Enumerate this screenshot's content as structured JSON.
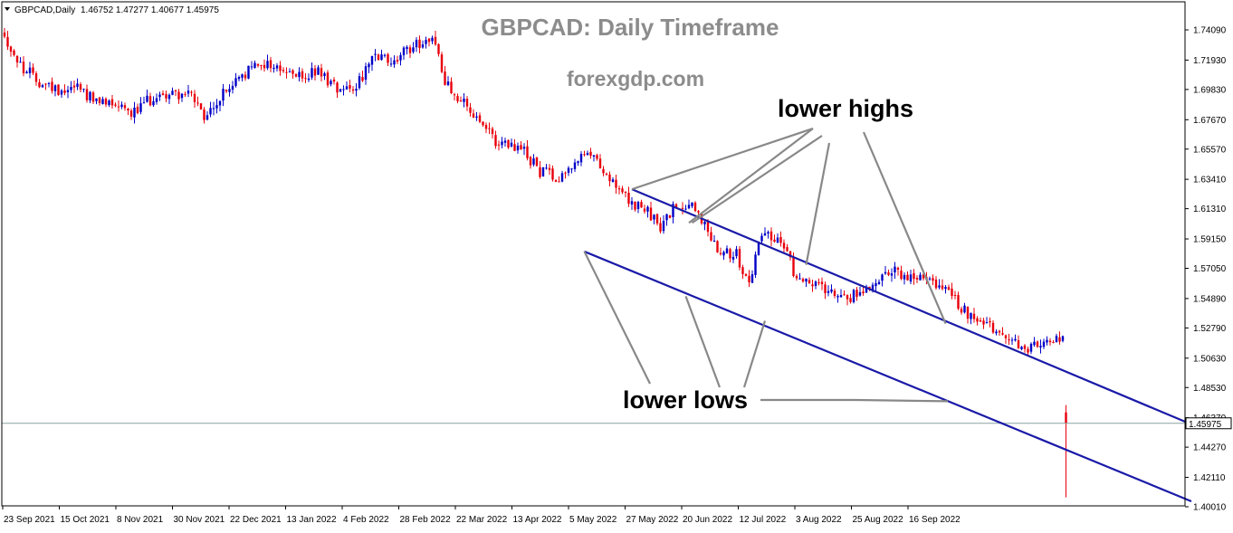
{
  "header": {
    "symbol_label": "GBPCAD,Daily",
    "ohlc": "1.46752 1.47277 1.40677 1.45975"
  },
  "overlay": {
    "title": "GBPCAD: Daily Timeframe",
    "site": "forexgdp.com",
    "label_highs": "lower highs",
    "label_lows": "lower lows"
  },
  "colors": {
    "bull": "#0000c8",
    "bear": "#e8000b",
    "channel": "#1a1aa8",
    "pointer": "#888888",
    "frame": "#000000",
    "price_line": "#8aa0a0",
    "title_text": "#8c8c8c",
    "label_text": "#000000"
  },
  "chart_data": {
    "type": "candlestick",
    "symbol": "GBPCAD",
    "timeframe": "Daily",
    "y_ticks": [
      "1.74090",
      "1.71930",
      "1.69830",
      "1.67670",
      "1.65570",
      "1.63410",
      "1.61310",
      "1.59150",
      "1.57050",
      "1.54890",
      "1.52790",
      "1.50630",
      "1.48530",
      "1.46370",
      "1.44270",
      "1.42110",
      "1.40010"
    ],
    "x_ticks": [
      "23 Sep 2021",
      "15 Oct 2021",
      "8 Nov 2021",
      "30 Nov 2021",
      "22 Dec 2021",
      "13 Jan 2022",
      "4 Feb 2022",
      "28 Feb 2022",
      "22 Mar 2022",
      "13 Apr 2022",
      "5 May 2022",
      "27 May 2022",
      "20 Jun 2022",
      "12 Jul 2022",
      "3 Aug 2022",
      "25 Aug 2022",
      "16 Sep 2022"
    ],
    "ylim": [
      1.3996,
      1.748
    ],
    "current_price": "1.45975",
    "last_candle": {
      "open": 1.46752,
      "high": 1.47277,
      "low": 1.40677,
      "close": 1.45975
    },
    "price_path": [
      [
        0,
        1.74
      ],
      [
        6,
        1.715
      ],
      [
        12,
        1.704
      ],
      [
        18,
        1.698
      ],
      [
        24,
        1.702
      ],
      [
        30,
        1.688
      ],
      [
        36,
        1.69
      ],
      [
        42,
        1.682
      ],
      [
        48,
        1.693
      ],
      [
        54,
        1.696
      ],
      [
        60,
        1.694
      ],
      [
        64,
        1.676
      ],
      [
        70,
        1.695
      ],
      [
        76,
        1.708
      ],
      [
        82,
        1.718
      ],
      [
        88,
        1.713
      ],
      [
        94,
        1.707
      ],
      [
        100,
        1.711
      ],
      [
        106,
        1.7
      ],
      [
        112,
        1.702
      ],
      [
        118,
        1.721
      ],
      [
        124,
        1.718
      ],
      [
        130,
        1.73
      ],
      [
        136,
        1.736
      ],
      [
        140,
        1.705
      ],
      [
        146,
        1.688
      ],
      [
        152,
        1.67
      ],
      [
        158,
        1.658
      ],
      [
        164,
        1.656
      ],
      [
        170,
        1.64
      ],
      [
        176,
        1.636
      ],
      [
        182,
        1.649
      ],
      [
        188,
        1.65
      ],
      [
        192,
        1.633
      ],
      [
        198,
        1.618
      ],
      [
        204,
        1.61
      ],
      [
        208,
        1.6
      ],
      [
        212,
        1.612
      ],
      [
        218,
        1.618
      ],
      [
        222,
        1.601
      ],
      [
        226,
        1.586
      ],
      [
        232,
        1.58
      ],
      [
        236,
        1.558
      ],
      [
        240,
        1.598
      ],
      [
        246,
        1.589
      ],
      [
        250,
        1.569
      ],
      [
        256,
        1.559
      ],
      [
        262,
        1.556
      ],
      [
        268,
        1.55
      ],
      [
        274,
        1.558
      ],
      [
        280,
        1.57
      ],
      [
        286,
        1.562
      ],
      [
        292,
        1.564
      ],
      [
        298,
        1.554
      ],
      [
        304,
        1.54
      ],
      [
        310,
        1.534
      ],
      [
        316,
        1.52
      ],
      [
        322,
        1.514
      ],
      [
        328,
        1.516
      ],
      [
        334,
        1.518
      ]
    ],
    "annotations": {
      "upper_channel": [
        [
          5,
          1.627
        ],
        [
          368,
          1.459
        ]
      ],
      "lower_channel": [
        [
          1,
          1.5825
        ],
        [
          368,
          1.404
        ]
      ],
      "lower_highs": [
        [
          5,
          1.627
        ],
        [
          76,
          1.601
        ],
        [
          139,
          1.573
        ],
        [
          185,
          1.5305
        ]
      ],
      "lower_lows": [
        [
          1,
          1.5825
        ],
        [
          69,
          1.55
        ],
        [
          101,
          1.532
        ],
        [
          185,
          1.4755
        ]
      ]
    }
  }
}
